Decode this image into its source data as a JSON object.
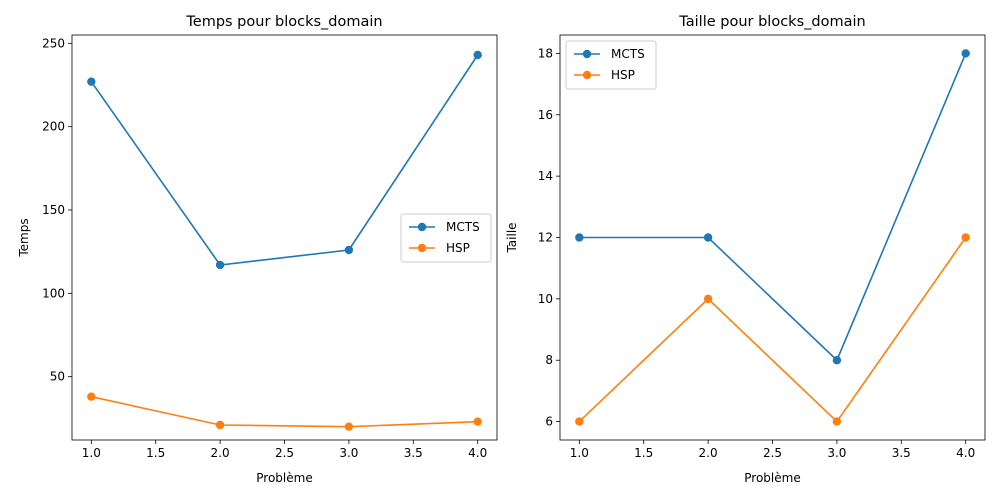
{
  "chart_data": [
    {
      "type": "line",
      "title": "Temps pour blocks_domain",
      "xlabel": "Problème",
      "ylabel": "Temps",
      "x": [
        1,
        2,
        3,
        4
      ],
      "xlim": [
        0.85,
        4.15
      ],
      "ylim": [
        12,
        255
      ],
      "xticks": [
        1.0,
        1.5,
        2.0,
        2.5,
        3.0,
        3.5,
        4.0
      ],
      "xtick_labels": [
        "1.0",
        "1.5",
        "2.0",
        "2.5",
        "3.0",
        "3.5",
        "4.0"
      ],
      "yticks": [
        50,
        100,
        150,
        200,
        250
      ],
      "ytick_labels": [
        "50",
        "100",
        "150",
        "200",
        "250"
      ],
      "grid": false,
      "legend_position": "center-right",
      "series": [
        {
          "name": "MCTS",
          "color": "#1f77b4",
          "marker": "circle",
          "values": [
            227,
            117,
            126,
            243
          ]
        },
        {
          "name": "HSP",
          "color": "#ff7f0e",
          "marker": "circle",
          "values": [
            38,
            21,
            20,
            23
          ]
        }
      ]
    },
    {
      "type": "line",
      "title": "Taille pour blocks_domain",
      "xlabel": "Problème",
      "ylabel": "Taille",
      "x": [
        1,
        2,
        3,
        4
      ],
      "xlim": [
        0.85,
        4.15
      ],
      "ylim": [
        5.4,
        18.6
      ],
      "xticks": [
        1.0,
        1.5,
        2.0,
        2.5,
        3.0,
        3.5,
        4.0
      ],
      "xtick_labels": [
        "1.0",
        "1.5",
        "2.0",
        "2.5",
        "3.0",
        "3.5",
        "4.0"
      ],
      "yticks": [
        6,
        8,
        10,
        12,
        14,
        16,
        18
      ],
      "ytick_labels": [
        "6",
        "8",
        "10",
        "12",
        "14",
        "16",
        "18"
      ],
      "grid": false,
      "legend_position": "top-left",
      "series": [
        {
          "name": "MCTS",
          "color": "#1f77b4",
          "marker": "circle",
          "values": [
            12,
            12,
            8,
            18
          ]
        },
        {
          "name": "HSP",
          "color": "#ff7f0e",
          "marker": "circle",
          "values": [
            6,
            10,
            6,
            12
          ]
        }
      ]
    }
  ]
}
